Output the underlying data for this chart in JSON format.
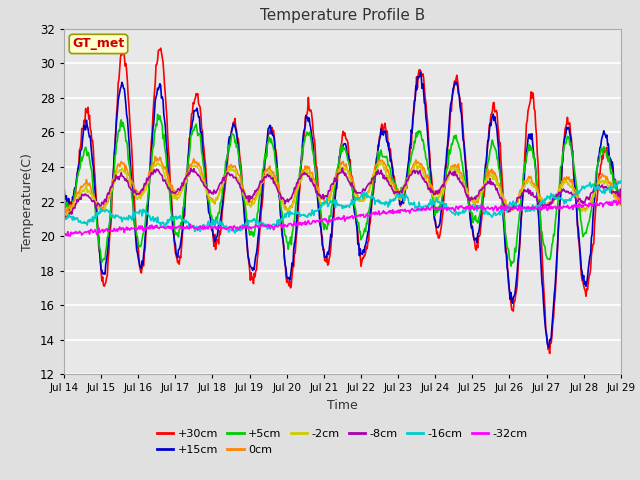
{
  "title": "Temperature Profile B",
  "xlabel": "Time",
  "ylabel": "Temperature(C)",
  "ylim": [
    12,
    32
  ],
  "yticks": [
    12,
    14,
    16,
    18,
    20,
    22,
    24,
    26,
    28,
    30,
    32
  ],
  "plot_bg_color": "#e8e8e8",
  "fig_bg_color": "#e0e0e0",
  "series": {
    "+30cm": {
      "color": "#ff0000",
      "lw": 1.2
    },
    "+15cm": {
      "color": "#0000cc",
      "lw": 1.2
    },
    "+5cm": {
      "color": "#00cc00",
      "lw": 1.2
    },
    "0cm": {
      "color": "#ff8800",
      "lw": 1.2
    },
    "-2cm": {
      "color": "#cccc00",
      "lw": 1.2
    },
    "-8cm": {
      "color": "#aa00aa",
      "lw": 1.2
    },
    "-16cm": {
      "color": "#00cccc",
      "lw": 1.2
    },
    "-32cm": {
      "color": "#ff00ff",
      "lw": 1.2
    }
  },
  "xtick_labels": [
    "Jul 14",
    "Jul 15",
    "Jul 16",
    "Jul 17",
    "Jul 18",
    "Jul 19",
    "Jul 20",
    "Jul 21",
    "Jul 22",
    "Jul 23",
    "Jul 24",
    "Jul 25",
    "Jul 26",
    "Jul 27",
    "Jul 28",
    "Jul 29"
  ],
  "gt_met_label": "GT_met",
  "gt_met_color": "#cc0000",
  "gt_met_bg": "#ffffcc",
  "gt_met_border": "#999900",
  "legend_entries": [
    "+30cm",
    "+15cm",
    "+5cm",
    "0cm",
    "-2cm",
    "-8cm",
    "-16cm",
    "-32cm"
  ],
  "legend_colors": [
    "#ff0000",
    "#0000cc",
    "#00cc00",
    "#ff8800",
    "#cccc00",
    "#aa00aa",
    "#00cccc",
    "#ff00ff"
  ]
}
